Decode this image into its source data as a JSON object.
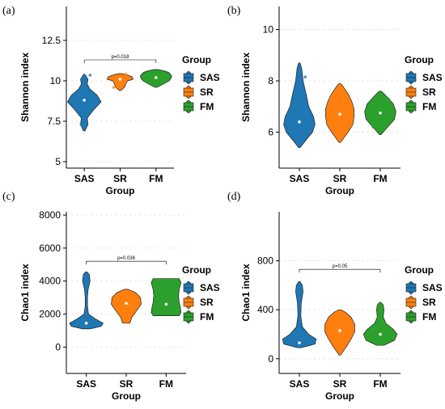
{
  "chart_data": [
    {
      "panel": "(a)",
      "type": "violin",
      "ylabel": "Shannon index",
      "xlabel": "Group",
      "categories": [
        "SAS",
        "SR",
        "FM"
      ],
      "yticks": [
        "5",
        "7.5",
        "10",
        "12.5"
      ],
      "ytick_values": [
        5,
        7.5,
        10,
        12.5
      ],
      "ylim": [
        4.6,
        14.6
      ],
      "legend_title": "Group",
      "grid": "horizontal dashed",
      "significance": {
        "label": "p=0.018",
        "from": "SAS",
        "to": "FM",
        "y": 11.3
      },
      "violins": [
        {
          "group": "SAS",
          "min": 6.9,
          "max": 10.4,
          "medians": 8.8,
          "profile": [
            [
              6.9,
              0.02
            ],
            [
              7.3,
              0.1
            ],
            [
              7.7,
              0.08
            ],
            [
              8.2,
              0.25
            ],
            [
              8.7,
              0.45
            ],
            [
              9.1,
              0.35
            ],
            [
              9.5,
              0.15
            ],
            [
              9.8,
              0.08
            ],
            [
              10.1,
              0.1
            ],
            [
              10.4,
              0.02
            ]
          ],
          "points": [
            {
              "x": 0.18,
              "y": 10.35
            },
            {
              "x": -0.1,
              "y": 7.3
            }
          ]
        },
        {
          "group": "SR",
          "min": 9.4,
          "max": 10.45,
          "medians": 10.1,
          "profile": [
            [
              9.4,
              0.02
            ],
            [
              9.6,
              0.12
            ],
            [
              9.8,
              0.15
            ],
            [
              10.0,
              0.2
            ],
            [
              10.1,
              0.35
            ],
            [
              10.25,
              0.32
            ],
            [
              10.35,
              0.2
            ],
            [
              10.45,
              0.03
            ]
          ],
          "points": [
            {
              "x": -0.2,
              "y": 9.6
            },
            {
              "x": 0.18,
              "y": 10.4
            }
          ]
        },
        {
          "group": "FM",
          "min": 9.6,
          "max": 10.7,
          "medians": 10.2,
          "profile": [
            [
              9.6,
              0.03
            ],
            [
              9.8,
              0.2
            ],
            [
              10.0,
              0.35
            ],
            [
              10.15,
              0.4
            ],
            [
              10.3,
              0.42
            ],
            [
              10.5,
              0.35
            ],
            [
              10.6,
              0.25
            ],
            [
              10.7,
              0.05
            ]
          ],
          "points": [
            {
              "x": 0.0,
              "y": 10.55
            },
            {
              "x": 0.22,
              "y": 10.45
            }
          ]
        }
      ]
    },
    {
      "panel": "(b)",
      "type": "violin",
      "ylabel": "Shannon index",
      "xlabel": "Group",
      "categories": [
        "SAS",
        "SR",
        "FM"
      ],
      "yticks": [
        "6",
        "8",
        "10"
      ],
      "ytick_values": [
        6,
        8,
        10
      ],
      "ylim": [
        4.6,
        10.9
      ],
      "legend_title": "Group",
      "grid": "horizontal dashed",
      "violins": [
        {
          "group": "SAS",
          "min": 5.4,
          "max": 8.7,
          "medians": 6.4,
          "profile": [
            [
              5.4,
              0.02
            ],
            [
              5.7,
              0.18
            ],
            [
              6.0,
              0.35
            ],
            [
              6.3,
              0.42
            ],
            [
              6.6,
              0.38
            ],
            [
              7.0,
              0.25
            ],
            [
              7.5,
              0.18
            ],
            [
              8.0,
              0.1
            ],
            [
              8.5,
              0.06
            ],
            [
              8.7,
              0.02
            ]
          ],
          "points": [
            {
              "x": 0.18,
              "y": 8.15
            },
            {
              "x": 0.22,
              "y": 6.9
            }
          ]
        },
        {
          "group": "SR",
          "min": 5.6,
          "max": 7.9,
          "medians": 6.7,
          "profile": [
            [
              5.6,
              0.02
            ],
            [
              6.0,
              0.22
            ],
            [
              6.3,
              0.35
            ],
            [
              6.6,
              0.38
            ],
            [
              6.9,
              0.38
            ],
            [
              7.2,
              0.32
            ],
            [
              7.5,
              0.22
            ],
            [
              7.8,
              0.08
            ],
            [
              7.9,
              0.02
            ]
          ],
          "points": []
        },
        {
          "group": "FM",
          "min": 5.9,
          "max": 7.6,
          "medians": 6.75,
          "profile": [
            [
              5.9,
              0.02
            ],
            [
              6.2,
              0.2
            ],
            [
              6.5,
              0.38
            ],
            [
              6.8,
              0.42
            ],
            [
              7.1,
              0.35
            ],
            [
              7.35,
              0.2
            ],
            [
              7.6,
              0.03
            ]
          ],
          "points": [
            {
              "x": -0.22,
              "y": 6.2
            },
            {
              "x": 0.25,
              "y": 7.3
            },
            {
              "x": 0.28,
              "y": 7.0
            }
          ]
        }
      ]
    },
    {
      "panel": "(c)",
      "type": "violin",
      "ylabel": "Chao1 index",
      "xlabel": "Group",
      "categories": [
        "SAS",
        "SR",
        "FM"
      ],
      "yticks": [
        "0",
        "2000",
        "4000",
        "6000",
        "8000"
      ],
      "ytick_values": [
        0,
        2000,
        4000,
        6000,
        8000
      ],
      "ylim": [
        -1600,
        8200
      ],
      "legend_title": "Group",
      "grid": "horizontal dashed",
      "significance": {
        "label": "p=0.036",
        "from": "SAS",
        "to": "FM",
        "y": 5200
      },
      "violins": [
        {
          "group": "SAS",
          "min": 1100,
          "max": 4550,
          "medians": 1450,
          "profile": [
            [
              1100,
              0.1
            ],
            [
              1250,
              0.4
            ],
            [
              1450,
              0.45
            ],
            [
              1700,
              0.25
            ],
            [
              2000,
              0.06
            ],
            [
              2500,
              0.03
            ],
            [
              3000,
              0.03
            ],
            [
              3500,
              0.05
            ],
            [
              4000,
              0.1
            ],
            [
              4400,
              0.08
            ],
            [
              4550,
              0.02
            ]
          ],
          "points": []
        },
        {
          "group": "SR",
          "min": 1450,
          "max": 3500,
          "medians": 2650,
          "profile": [
            [
              1450,
              0.1
            ],
            [
              1800,
              0.15
            ],
            [
              2200,
              0.28
            ],
            [
              2600,
              0.4
            ],
            [
              3000,
              0.38
            ],
            [
              3300,
              0.25
            ],
            [
              3500,
              0.05
            ]
          ],
          "points": [
            {
              "x": 0.25,
              "y": 3200
            }
          ]
        },
        {
          "group": "FM",
          "min": 1900,
          "max": 4150,
          "medians": 2600,
          "profile": [
            [
              1900,
              0.35
            ],
            [
              2100,
              0.4
            ],
            [
              2400,
              0.38
            ],
            [
              2700,
              0.35
            ],
            [
              3100,
              0.33
            ],
            [
              3500,
              0.35
            ],
            [
              3900,
              0.4
            ],
            [
              4150,
              0.35
            ]
          ],
          "points": [
            {
              "x": 0.32,
              "y": 2000
            }
          ]
        }
      ]
    },
    {
      "panel": "(d)",
      "type": "violin",
      "ylabel": "Chao1 index",
      "xlabel": "Group",
      "categories": [
        "SAS",
        "SR",
        "FM"
      ],
      "yticks": [
        "0",
        "400",
        "800"
      ],
      "ytick_values": [
        0,
        400,
        800
      ],
      "ylim": [
        -120,
        1200
      ],
      "legend_title": "Group",
      "grid": "horizontal dashed",
      "significance": {
        "label": "p=0.05",
        "from": "SAS",
        "to": "FM",
        "y": 730
      },
      "violins": [
        {
          "group": "SAS",
          "min": 90,
          "max": 630,
          "medians": 130,
          "profile": [
            [
              90,
              0.05
            ],
            [
              120,
              0.42
            ],
            [
              160,
              0.45
            ],
            [
              200,
              0.25
            ],
            [
              260,
              0.08
            ],
            [
              350,
              0.04
            ],
            [
              450,
              0.05
            ],
            [
              550,
              0.1
            ],
            [
              600,
              0.08
            ],
            [
              630,
              0.02
            ]
          ],
          "points": [
            {
              "x": -0.25,
              "y": 170
            }
          ]
        },
        {
          "group": "SR",
          "min": 30,
          "max": 400,
          "medians": 230,
          "profile": [
            [
              30,
              0.02
            ],
            [
              100,
              0.18
            ],
            [
              160,
              0.3
            ],
            [
              220,
              0.4
            ],
            [
              280,
              0.4
            ],
            [
              340,
              0.3
            ],
            [
              380,
              0.15
            ],
            [
              400,
              0.02
            ]
          ],
          "points": []
        },
        {
          "group": "FM",
          "min": 110,
          "max": 460,
          "medians": 200,
          "profile": [
            [
              110,
              0.1
            ],
            [
              150,
              0.38
            ],
            [
              200,
              0.45
            ],
            [
              240,
              0.35
            ],
            [
              290,
              0.15
            ],
            [
              340,
              0.08
            ],
            [
              400,
              0.1
            ],
            [
              440,
              0.08
            ],
            [
              460,
              0.02
            ]
          ],
          "points": [
            {
              "x": 0.28,
              "y": 220
            }
          ]
        }
      ]
    }
  ],
  "legend": {
    "title": "Group",
    "entries": [
      {
        "label": "SAS",
        "color": "#1f77b4"
      },
      {
        "label": "SR",
        "color": "#ff7f0e"
      },
      {
        "label": "FM",
        "color": "#2ca02c"
      }
    ]
  },
  "colors": {
    "SAS": "#1f77b4",
    "SR": "#ff7f0e",
    "FM": "#2ca02c"
  }
}
